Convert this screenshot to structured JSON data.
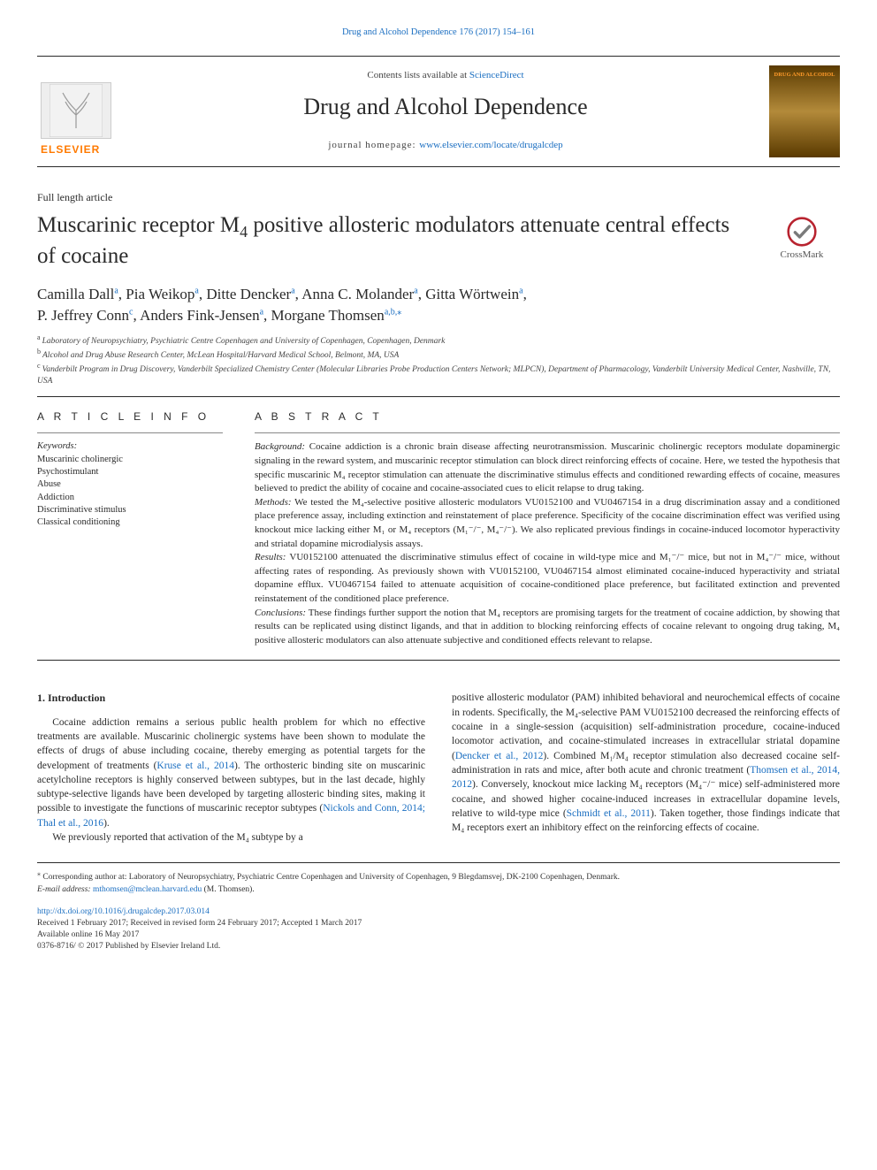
{
  "top_link": {
    "journal": "Drug and Alcohol Dependence",
    "citation": "176 (2017) 154–161"
  },
  "header": {
    "contents_prefix": "Contents lists available at ",
    "contents_link": "ScienceDirect",
    "journal_name": "Drug and Alcohol Dependence",
    "homepage_prefix": "journal homepage: ",
    "homepage_url": "www.elsevier.com/locate/drugalcdep",
    "publisher_word": "ELSEVIER",
    "cover_title": "DRUG AND ALCOHOL"
  },
  "article_type": "Full length article",
  "title_pre": "Muscarinic receptor M",
  "title_sub": "4",
  "title_post": " positive allosteric modulators attenuate central effects of cocaine",
  "crossmark_label": "CrossMark",
  "authors": [
    {
      "name": "Camilla Dall",
      "marks": "a"
    },
    {
      "name": "Pia Weikop",
      "marks": "a"
    },
    {
      "name": "Ditte Dencker",
      "marks": "a"
    },
    {
      "name": "Anna C. Molander",
      "marks": "a"
    },
    {
      "name": "Gitta Wörtwein",
      "marks": "a"
    },
    {
      "name": "P. Jeffrey Conn",
      "marks": "c"
    },
    {
      "name": "Anders Fink-Jensen",
      "marks": "a"
    },
    {
      "name": "Morgane Thomsen",
      "marks": "a,b,",
      "corr": true
    }
  ],
  "affiliations": [
    {
      "mark": "a",
      "text": "Laboratory of Neuropsychiatry, Psychiatric Centre Copenhagen and University of Copenhagen, Copenhagen, Denmark"
    },
    {
      "mark": "b",
      "text": "Alcohol and Drug Abuse Research Center, McLean Hospital/Harvard Medical School, Belmont, MA, USA"
    },
    {
      "mark": "c",
      "text": "Vanderbilt Program in Drug Discovery, Vanderbilt Specialized Chemistry Center (Molecular Libraries Probe Production Centers Network; MLPCN), Department of Pharmacology, Vanderbilt University Medical Center, Nashville, TN, USA"
    }
  ],
  "info_head": "A R T I C L E  I N F O",
  "abs_head": "A B S T R A C T",
  "keywords_head": "Keywords:",
  "keywords": [
    "Muscarinic cholinergic",
    "Psychostimulant",
    "Abuse",
    "Addiction",
    "Discriminative stimulus",
    "Classical conditioning"
  ],
  "abstract": {
    "background_label": "Background:",
    "background": " Cocaine addiction is a chronic brain disease affecting neurotransmission. Muscarinic cholinergic receptors modulate dopaminergic signaling in the reward system, and muscarinic receptor stimulation can block direct reinforcing effects of cocaine. Here, we tested the hypothesis that specific muscarinic M₄ receptor stimulation can attenuate the discriminative stimulus effects and conditioned rewarding effects of cocaine, measures believed to predict the ability of cocaine and cocaine-associated cues to elicit relapse to drug taking.",
    "methods_label": "Methods:",
    "methods": " We tested the M₄-selective positive allosteric modulators VU0152100 and VU0467154 in a drug discrimination assay and a conditioned place preference assay, including extinction and reinstatement of place preference. Specificity of the cocaine discrimination effect was verified using knockout mice lacking either M₁ or M₄ receptors (M₁⁻/⁻, M₄⁻/⁻). We also replicated previous findings in cocaine-induced locomotor hyperactivity and striatal dopamine microdialysis assays.",
    "results_label": "Results:",
    "results": " VU0152100 attenuated the discriminative stimulus effect of cocaine in wild-type mice and M₁⁻/⁻ mice, but not in M₄⁻/⁻ mice, without affecting rates of responding. As previously shown with VU0152100, VU0467154 almost eliminated cocaine-induced hyperactivity and striatal dopamine efflux. VU0467154 failed to attenuate acquisition of cocaine-conditioned place preference, but facilitated extinction and prevented reinstatement of the conditioned place preference.",
    "conclusions_label": "Conclusions:",
    "conclusions": " These findings further support the notion that M₄ receptors are promising targets for the treatment of cocaine addiction, by showing that results can be replicated using distinct ligands, and that in addition to blocking reinforcing effects of cocaine relevant to ongoing drug taking, M₄ positive allosteric modulators can also attenuate subjective and conditioned effects relevant to relapse."
  },
  "intro_head": "1. Introduction",
  "intro_p1": "Cocaine addiction remains a serious public health problem for which no effective treatments are available. Muscarinic cholinergic systems have been shown to modulate the effects of drugs of abuse including cocaine, thereby emerging as potential targets for the development of treatments (",
  "intro_p1_ref1": "Kruse et al., 2014",
  "intro_p1b": "). The orthosteric binding site on muscarinic acetylcholine receptors is highly conserved between subtypes, but in the last decade, highly subtype-selective ligands have been developed by targeting allosteric binding sites, making it possible to investigate the functions of muscarinic receptor subtypes (",
  "intro_p1_ref2": "Nickols and Conn, 2014; Thal et al., 2016",
  "intro_p1c": ").",
  "intro_p2": "We previously reported that activation of the M₄ subtype by a",
  "intro_col2_a": "positive allosteric modulator (PAM) inhibited behavioral and neurochemical effects of cocaine in rodents. Specifically, the M₄-selective PAM VU0152100 decreased the reinforcing effects of cocaine in a single-session (acquisition) self-administration procedure, cocaine-induced locomotor activation, and cocaine-stimulated increases in extracellular striatal dopamine (",
  "intro_col2_ref1": "Dencker et al., 2012",
  "intro_col2_b": "). Combined M₁/M₄ receptor stimulation also decreased cocaine self-administration in rats and mice, after both acute and chronic treatment (",
  "intro_col2_ref2": "Thomsen et al., 2014, 2012",
  "intro_col2_c": "). Conversely, knockout mice lacking M₄ receptors (M₄⁻/⁻ mice) self-administered more cocaine, and showed higher cocaine-induced increases in extracellular dopamine levels, relative to wild-type mice (",
  "intro_col2_ref3": "Schmidt et al., 2011",
  "intro_col2_d": "). Taken together, those findings indicate that M₄ receptors exert an inhibitory effect on the reinforcing effects of cocaine.",
  "corr": {
    "text": "Corresponding author at: Laboratory of Neuropsychiatry, Psychiatric Centre Copenhagen and University of Copenhagen, 9 Blegdamsvej, DK-2100 Copenhagen, Denmark.",
    "email_label": "E-mail address:",
    "email": "mthomsen@mclean.harvard.edu",
    "email_name": " (M. Thomsen)."
  },
  "doi": {
    "url": "http://dx.doi.org/10.1016/j.drugalcdep.2017.03.014",
    "received": "Received 1 February 2017; Received in revised form 24 February 2017; Accepted 1 March 2017",
    "online": "Available online 16 May 2017",
    "copyright": "0376-8716/ © 2017 Published by Elsevier Ireland Ltd."
  },
  "colors": {
    "link": "#1a6ec1",
    "text": "#2a2a2a",
    "elsevier": "#ff7a00"
  }
}
